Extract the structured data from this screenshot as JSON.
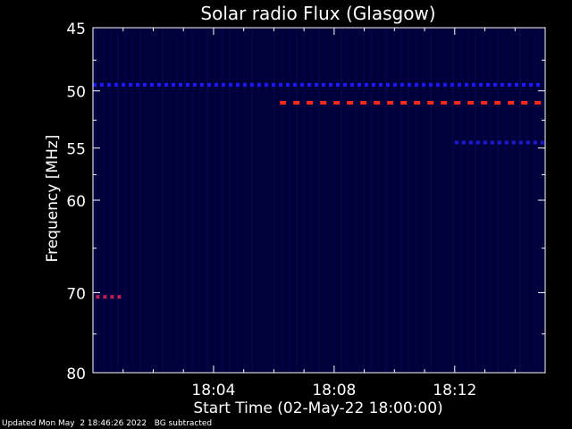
{
  "chart_data": {
    "type": "heatmap",
    "title": "Solar radio Flux (Glasgow)",
    "xlabel": "Start Time (02-May-22 18:00:00)",
    "ylabel": "Frequency [MHz]",
    "x_range_minutes": [
      0,
      15
    ],
    "y_range_mhz": [
      45,
      80
    ],
    "y_scale": "log",
    "x_ticks": [
      {
        "label": "18:04",
        "minutes": 4
      },
      {
        "label": "18:08",
        "minutes": 8
      },
      {
        "label": "18:12",
        "minutes": 12
      }
    ],
    "y_ticks": [
      {
        "label": "45",
        "mhz": 45
      },
      {
        "label": "50",
        "mhz": 50
      },
      {
        "label": "55",
        "mhz": 55
      },
      {
        "label": "60",
        "mhz": 60
      },
      {
        "label": "70",
        "mhz": 70
      },
      {
        "label": "80",
        "mhz": 80
      }
    ],
    "y_minor_ticks_mhz": [
      47.5,
      52.5,
      57.5,
      65,
      75
    ],
    "emission_bands": [
      {
        "name": "band-49.5",
        "mhz": 49.5,
        "minutes_start": 0,
        "minutes_end": 15,
        "intensity": "low",
        "color": "#1a1aff"
      },
      {
        "name": "band-51",
        "mhz": 51,
        "minutes_start": 6.2,
        "minutes_end": 15,
        "intensity": "high",
        "color": "#ff2a1a"
      },
      {
        "name": "band-54.5",
        "mhz": 54.5,
        "minutes_start": 12,
        "minutes_end": 15,
        "intensity": "low",
        "color": "#1a1ad0"
      },
      {
        "name": "band-70.5",
        "mhz": 70.5,
        "minutes_start": 0.1,
        "minutes_end": 1.0,
        "intensity": "medium",
        "color": "#c0205a"
      }
    ],
    "colors": {
      "background": "#000000",
      "plot_background": "#00003a",
      "axes": "#ffffff"
    }
  },
  "footer": {
    "updated": "Updated Mon May  2 18:46:26 2022",
    "note": "BG subtracted"
  }
}
